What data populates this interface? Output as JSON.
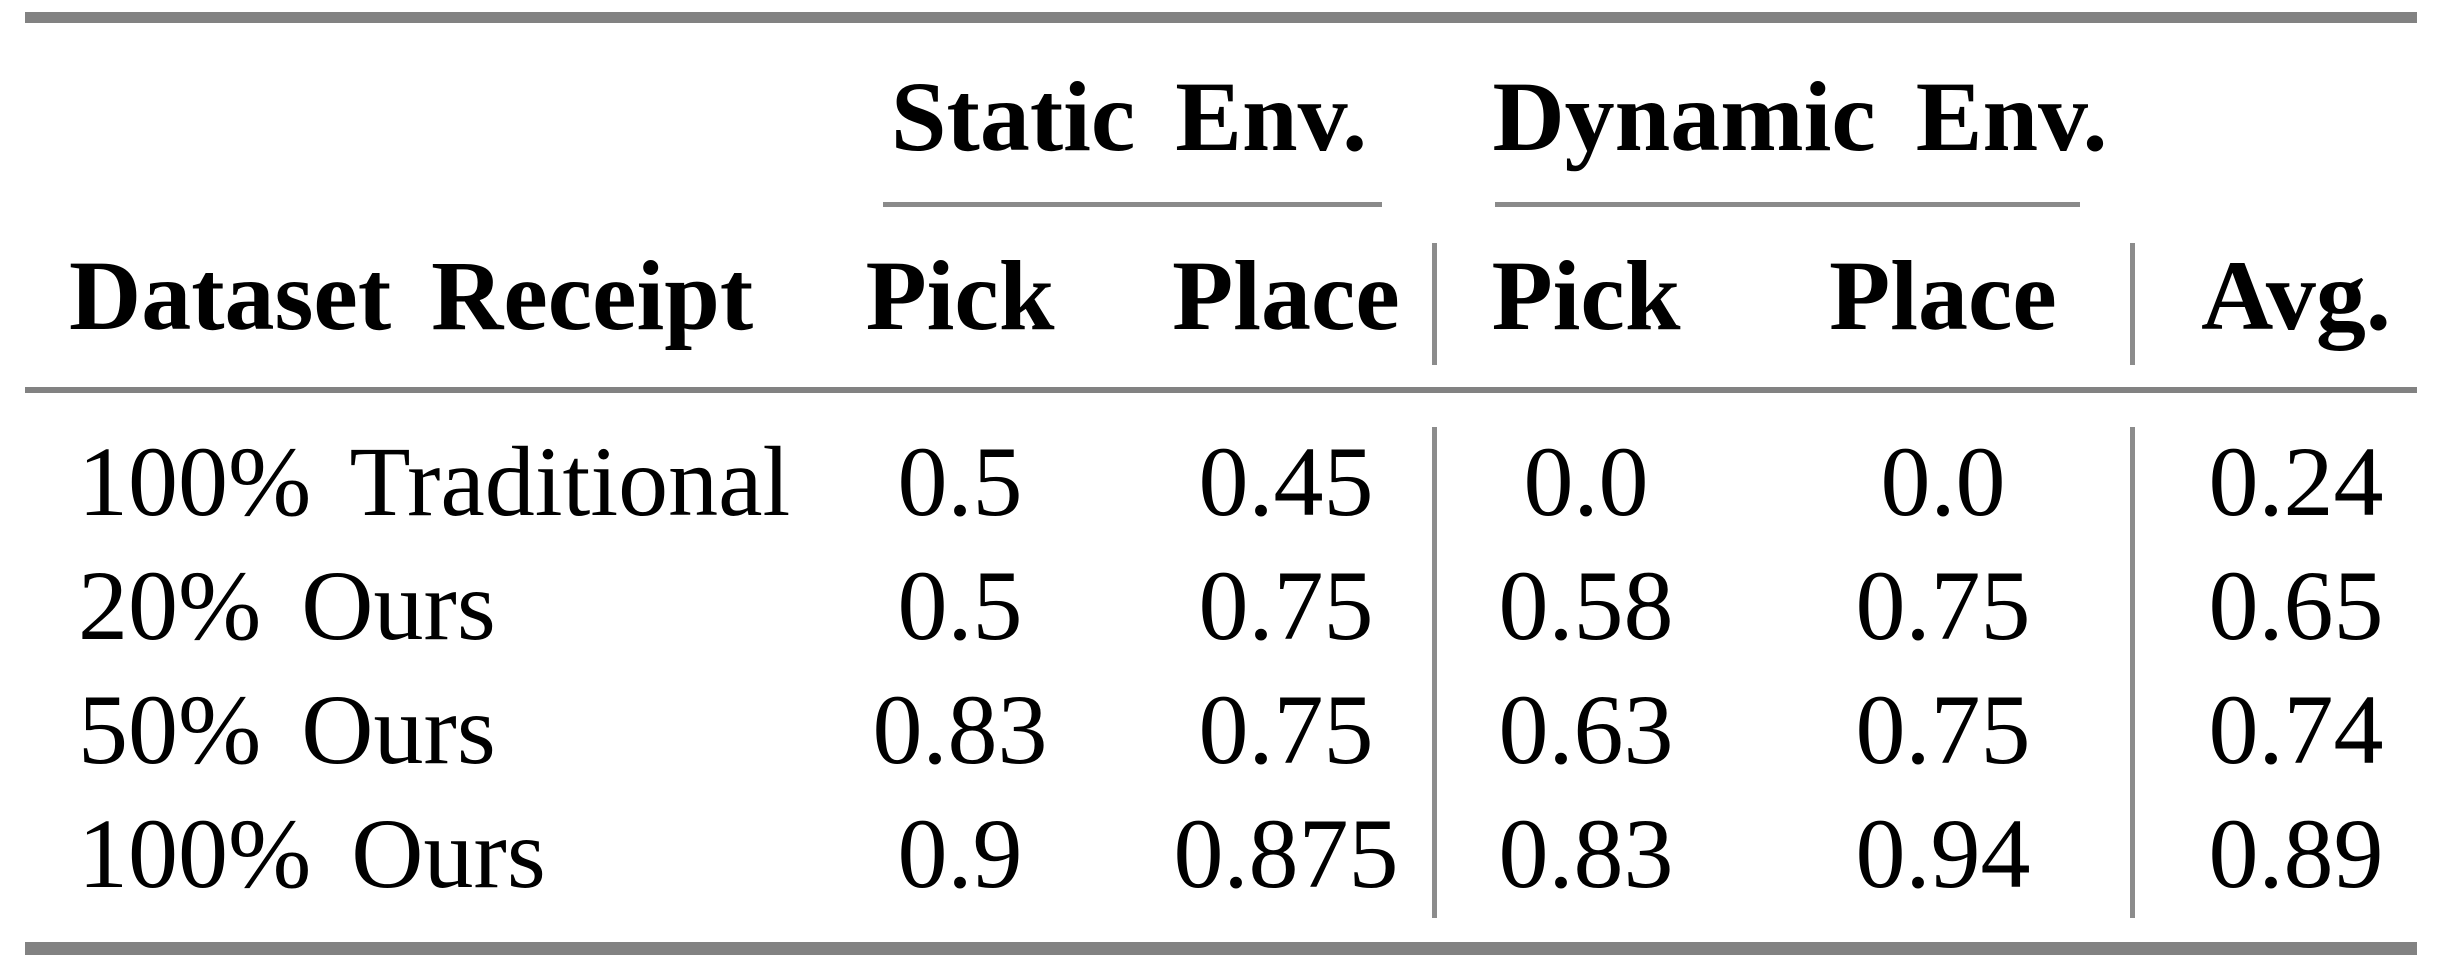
{
  "colors": {
    "rule_gray": "#828282",
    "text": "#000000",
    "background": "#ffffff"
  },
  "table": {
    "group_headers": {
      "static": "Static Env.",
      "dynamic": "Dynamic Env."
    },
    "columns": {
      "dataset": "Dataset Receipt",
      "static_pick": "Pick",
      "static_place": "Place",
      "dynamic_pick": "Pick",
      "dynamic_place": "Place",
      "avg": "Avg."
    },
    "rows": [
      {
        "label": "100% Traditional",
        "values": [
          "0.5",
          "0.45",
          "0.0",
          "0.0",
          "0.24"
        ]
      },
      {
        "label": "20% Ours",
        "values": [
          "0.5",
          "0.75",
          "0.58",
          "0.75",
          "0.65"
        ]
      },
      {
        "label": "50% Ours",
        "values": [
          "0.83",
          "0.75",
          "0.63",
          "0.75",
          "0.74"
        ]
      },
      {
        "label": "100% Ours",
        "values": [
          "0.9",
          "0.875",
          "0.83",
          "0.94",
          "0.89"
        ]
      }
    ]
  }
}
